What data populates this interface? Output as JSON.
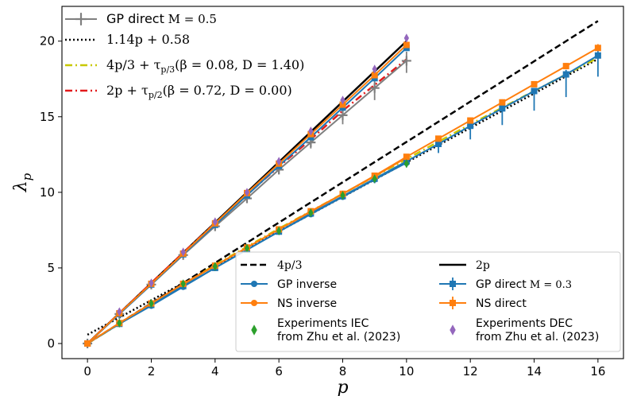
{
  "chart_data": {
    "type": "line",
    "title": "",
    "xlabel": "p",
    "ylabel": "λp",
    "xlim": [
      -0.8,
      16.8
    ],
    "ylim": [
      -1.0,
      22.3
    ],
    "xticks": [
      0,
      2,
      4,
      6,
      8,
      10,
      12,
      14,
      16
    ],
    "yticks": [
      0,
      5,
      10,
      15,
      20
    ],
    "colors": {
      "blue": "#1f77b4",
      "orange": "#ff7f0e",
      "green": "#2ca02c",
      "purple": "#9467bd",
      "gray": "#7f7f7f",
      "red": "#e31a1c",
      "yellow": "#c8c800",
      "black": "#000000"
    },
    "lines": [
      {
        "name": "4p/3",
        "label_text": "4p/3",
        "style": "dashed",
        "color": "#000000",
        "x": [
          0,
          16
        ],
        "y": [
          0,
          21.333
        ]
      },
      {
        "name": "2p",
        "label_text": "2p",
        "style": "solid",
        "color": "#000000",
        "x": [
          0,
          10
        ],
        "y": [
          0,
          20
        ]
      },
      {
        "name": "1.14p + 0.58",
        "label_text": "1.14p + 0.58",
        "style": "dotted",
        "color": "#000000",
        "x": [
          0,
          16
        ],
        "y": [
          0.58,
          18.82
        ]
      },
      {
        "name": "4p/3 + τp/3(β=0.08, D=1.40)",
        "label_text": "4p/3 + τ_{p/3}(β = 0.08, D = 1.40)",
        "style": "dashdot",
        "color": "#c8c800",
        "x": [
          0,
          2,
          4,
          6,
          8,
          10,
          12,
          14,
          16
        ],
        "y": [
          0.0,
          2.6,
          5.2,
          7.6,
          9.9,
          12.2,
          14.5,
          16.7,
          18.9
        ]
      },
      {
        "name": "2p + τp/2(β=0.72, D=0.00)",
        "label_text": "2p + τ_{p/2}(β = 0.72, D = 0.00)",
        "style": "dashdot",
        "color": "#e31a1c",
        "x": [
          0,
          1,
          2,
          3,
          4,
          5,
          6,
          7,
          8,
          9,
          10
        ],
        "y": [
          0.0,
          2.0,
          4.0,
          6.0,
          7.95,
          9.85,
          11.7,
          13.5,
          15.4,
          17.1,
          18.8
        ]
      }
    ],
    "series": [
      {
        "name": "GP inverse",
        "label_text": "GP inverse",
        "color": "#1f77b4",
        "marker": "circle",
        "x": [
          0,
          1,
          2,
          3,
          4,
          5,
          6,
          7,
          8,
          9,
          10
        ],
        "y": [
          0.0,
          1.3,
          2.5,
          3.75,
          5.0,
          6.2,
          7.4,
          8.55,
          9.7,
          10.85,
          11.95
        ]
      },
      {
        "name": "NS inverse",
        "label_text": "NS inverse",
        "color": "#ff7f0e",
        "marker": "circle",
        "x": [
          0,
          1,
          2,
          3,
          4,
          5,
          6,
          7,
          8,
          9,
          10
        ],
        "y": [
          0.0,
          1.35,
          2.65,
          3.9,
          5.15,
          6.35,
          7.55,
          8.7,
          9.9,
          11.05,
          12.3
        ]
      },
      {
        "name": "GP direct M=0.3",
        "label_text": "GP direct",
        "label_math": "M = 0.3",
        "color": "#1f77b4",
        "marker": "square",
        "x": [
          0,
          1,
          2,
          3,
          4,
          5,
          6,
          7,
          8,
          9,
          10,
          11,
          12,
          13,
          14,
          15,
          16
        ],
        "y": [
          0.0,
          1.3,
          2.55,
          3.8,
          5.0,
          6.2,
          7.4,
          8.6,
          9.75,
          10.9,
          12.05,
          13.2,
          14.4,
          15.55,
          16.7,
          17.8,
          19.05
        ],
        "err_low": [
          0,
          0,
          0,
          0,
          0,
          0,
          0,
          0,
          0,
          0.3,
          0.4,
          0.6,
          0.9,
          1.1,
          1.3,
          1.5,
          1.4
        ],
        "err_high": [
          0,
          0,
          0,
          0,
          0,
          0,
          0,
          0,
          0,
          0.1,
          0.1,
          0.1,
          0.1,
          0.15,
          0.2,
          0.3,
          0.3
        ]
      },
      {
        "name": "NS direct",
        "label_text": "NS direct",
        "color": "#ff7f0e",
        "marker": "square",
        "x": [
          0,
          1,
          2,
          3,
          4,
          5,
          6,
          7,
          8,
          9,
          10,
          11,
          12,
          13,
          14,
          15,
          16
        ],
        "y": [
          0.0,
          1.35,
          2.65,
          3.95,
          5.15,
          6.35,
          7.55,
          8.75,
          9.9,
          11.1,
          12.35,
          13.55,
          14.75,
          15.95,
          17.15,
          18.35,
          19.55
        ],
        "err_low": [
          0,
          0,
          0,
          0,
          0,
          0,
          0,
          0,
          0,
          0,
          0,
          0.1,
          0.1,
          0.15,
          0.15,
          0.2,
          0.2
        ],
        "err_high": [
          0,
          0,
          0,
          0,
          0,
          0,
          0,
          0,
          0,
          0,
          0,
          0.15,
          0.15,
          0.2,
          0.2,
          0.2,
          0.25
        ]
      },
      {
        "name": "GP direct M=0.5",
        "label_text": "GP direct",
        "label_math": "M = 0.5",
        "color": "#7f7f7f",
        "marker": "plus",
        "x": [
          0,
          1,
          2,
          3,
          4,
          5,
          6,
          7,
          8,
          9,
          10
        ],
        "y": [
          0.0,
          1.95,
          3.9,
          5.85,
          7.75,
          9.6,
          11.5,
          13.3,
          15.1,
          16.9,
          18.7
        ],
        "err_low": [
          0,
          0,
          0,
          0,
          0.1,
          0.2,
          0.3,
          0.4,
          0.6,
          0.8,
          0.8
        ],
        "err_high": [
          0,
          0,
          0,
          0,
          0.1,
          0.15,
          0.2,
          0.3,
          0.4,
          0.5,
          0.6
        ]
      },
      {
        "name": "GP direct M=0.3 (upper branch)",
        "label_text": "",
        "color": "#1f77b4",
        "marker": "square",
        "x": [
          0,
          1,
          2,
          3,
          4,
          5,
          6,
          7,
          8,
          9,
          10
        ],
        "y": [
          0.0,
          1.95,
          3.9,
          5.9,
          7.85,
          9.8,
          11.75,
          13.65,
          15.6,
          17.55,
          19.55
        ],
        "err_low": [
          0,
          0,
          0,
          0,
          0,
          0,
          0,
          0,
          0.1,
          0.1,
          0.2
        ],
        "err_high": [
          0,
          0,
          0,
          0,
          0,
          0,
          0,
          0,
          0.1,
          0.1,
          0.2
        ]
      },
      {
        "name": "NS direct (upper branch)",
        "label_text": "",
        "color": "#ff7f0e",
        "marker": "square",
        "x": [
          0,
          1,
          2,
          3,
          4,
          5,
          6,
          7,
          8,
          9,
          10
        ],
        "y": [
          0.0,
          2.0,
          3.95,
          5.95,
          7.95,
          9.95,
          11.9,
          13.85,
          15.8,
          17.75,
          19.75
        ],
        "err_low": [
          0,
          0,
          0,
          0,
          0,
          0,
          0,
          0,
          0,
          0,
          0
        ],
        "err_high": [
          0,
          0,
          0,
          0,
          0,
          0,
          0,
          0,
          0,
          0,
          0
        ]
      },
      {
        "name": "Experiments IEC from Zhu et al. (2023)",
        "label_text": "Experiments IEC",
        "label_text2": "from Zhu et al. (2023)",
        "color": "#2ca02c",
        "marker": "diamond",
        "points_only": true,
        "x": [
          1,
          2,
          3,
          4,
          5,
          6,
          7,
          8,
          9,
          10
        ],
        "y": [
          1.35,
          2.65,
          3.95,
          5.1,
          6.3,
          7.45,
          8.65,
          9.8,
          10.9,
          11.9
        ]
      },
      {
        "name": "Experiments DEC from Zhu et al. (2023)",
        "label_text": "Experiments DEC",
        "label_text2": "from Zhu et al. (2023)",
        "color": "#9467bd",
        "marker": "diamond",
        "points_only": true,
        "x": [
          1,
          2,
          3,
          4,
          5,
          6,
          7,
          8,
          9,
          10
        ],
        "y": [
          2.1,
          4.0,
          6.05,
          8.05,
          10.0,
          12.05,
          14.05,
          16.1,
          18.15,
          20.2
        ]
      }
    ],
    "legend_top": {
      "placement": "top-left",
      "entries": [
        "GP direct M=0.5",
        "1.14p + 0.58",
        "4p/3 + τp/3(β=0.08, D=1.40)",
        "2p + τp/2(β=0.72, D=0.00)"
      ]
    },
    "legend_bottom": {
      "placement": "bottom-right",
      "entries": [
        "4p/3",
        "2p",
        "GP inverse",
        "GP direct M=0.3",
        "NS inverse",
        "NS direct",
        "Experiments IEC from Zhu et al. (2023)",
        "Experiments DEC from Zhu et al. (2023)"
      ]
    }
  }
}
